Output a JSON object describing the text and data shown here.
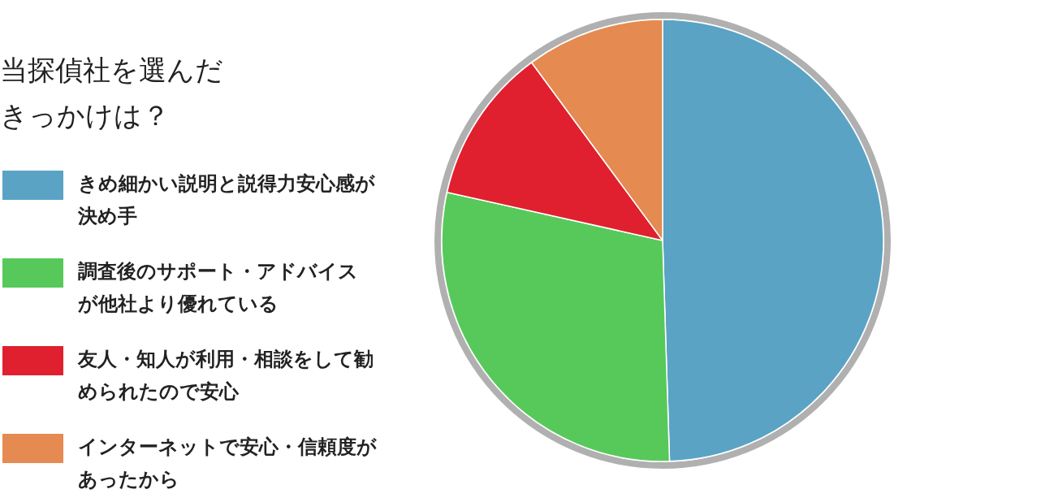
{
  "chart_data": {
    "type": "pie",
    "title": "当探偵社を選んだきっかけは？",
    "categories": [
      "きめ細かい説明と説得力安心感が決め手",
      "調査後のサポート・アドバイスが他社より優れている",
      "友人・知人が利用・相談をして勧められたので安心",
      "インターネットで安心・信頼度があったから"
    ],
    "values": [
      49.5,
      29,
      11.4,
      10.1
    ],
    "colors": [
      "#5aa3c4",
      "#57c95a",
      "#e0202e",
      "#e58a50"
    ],
    "legend": "left"
  }
}
